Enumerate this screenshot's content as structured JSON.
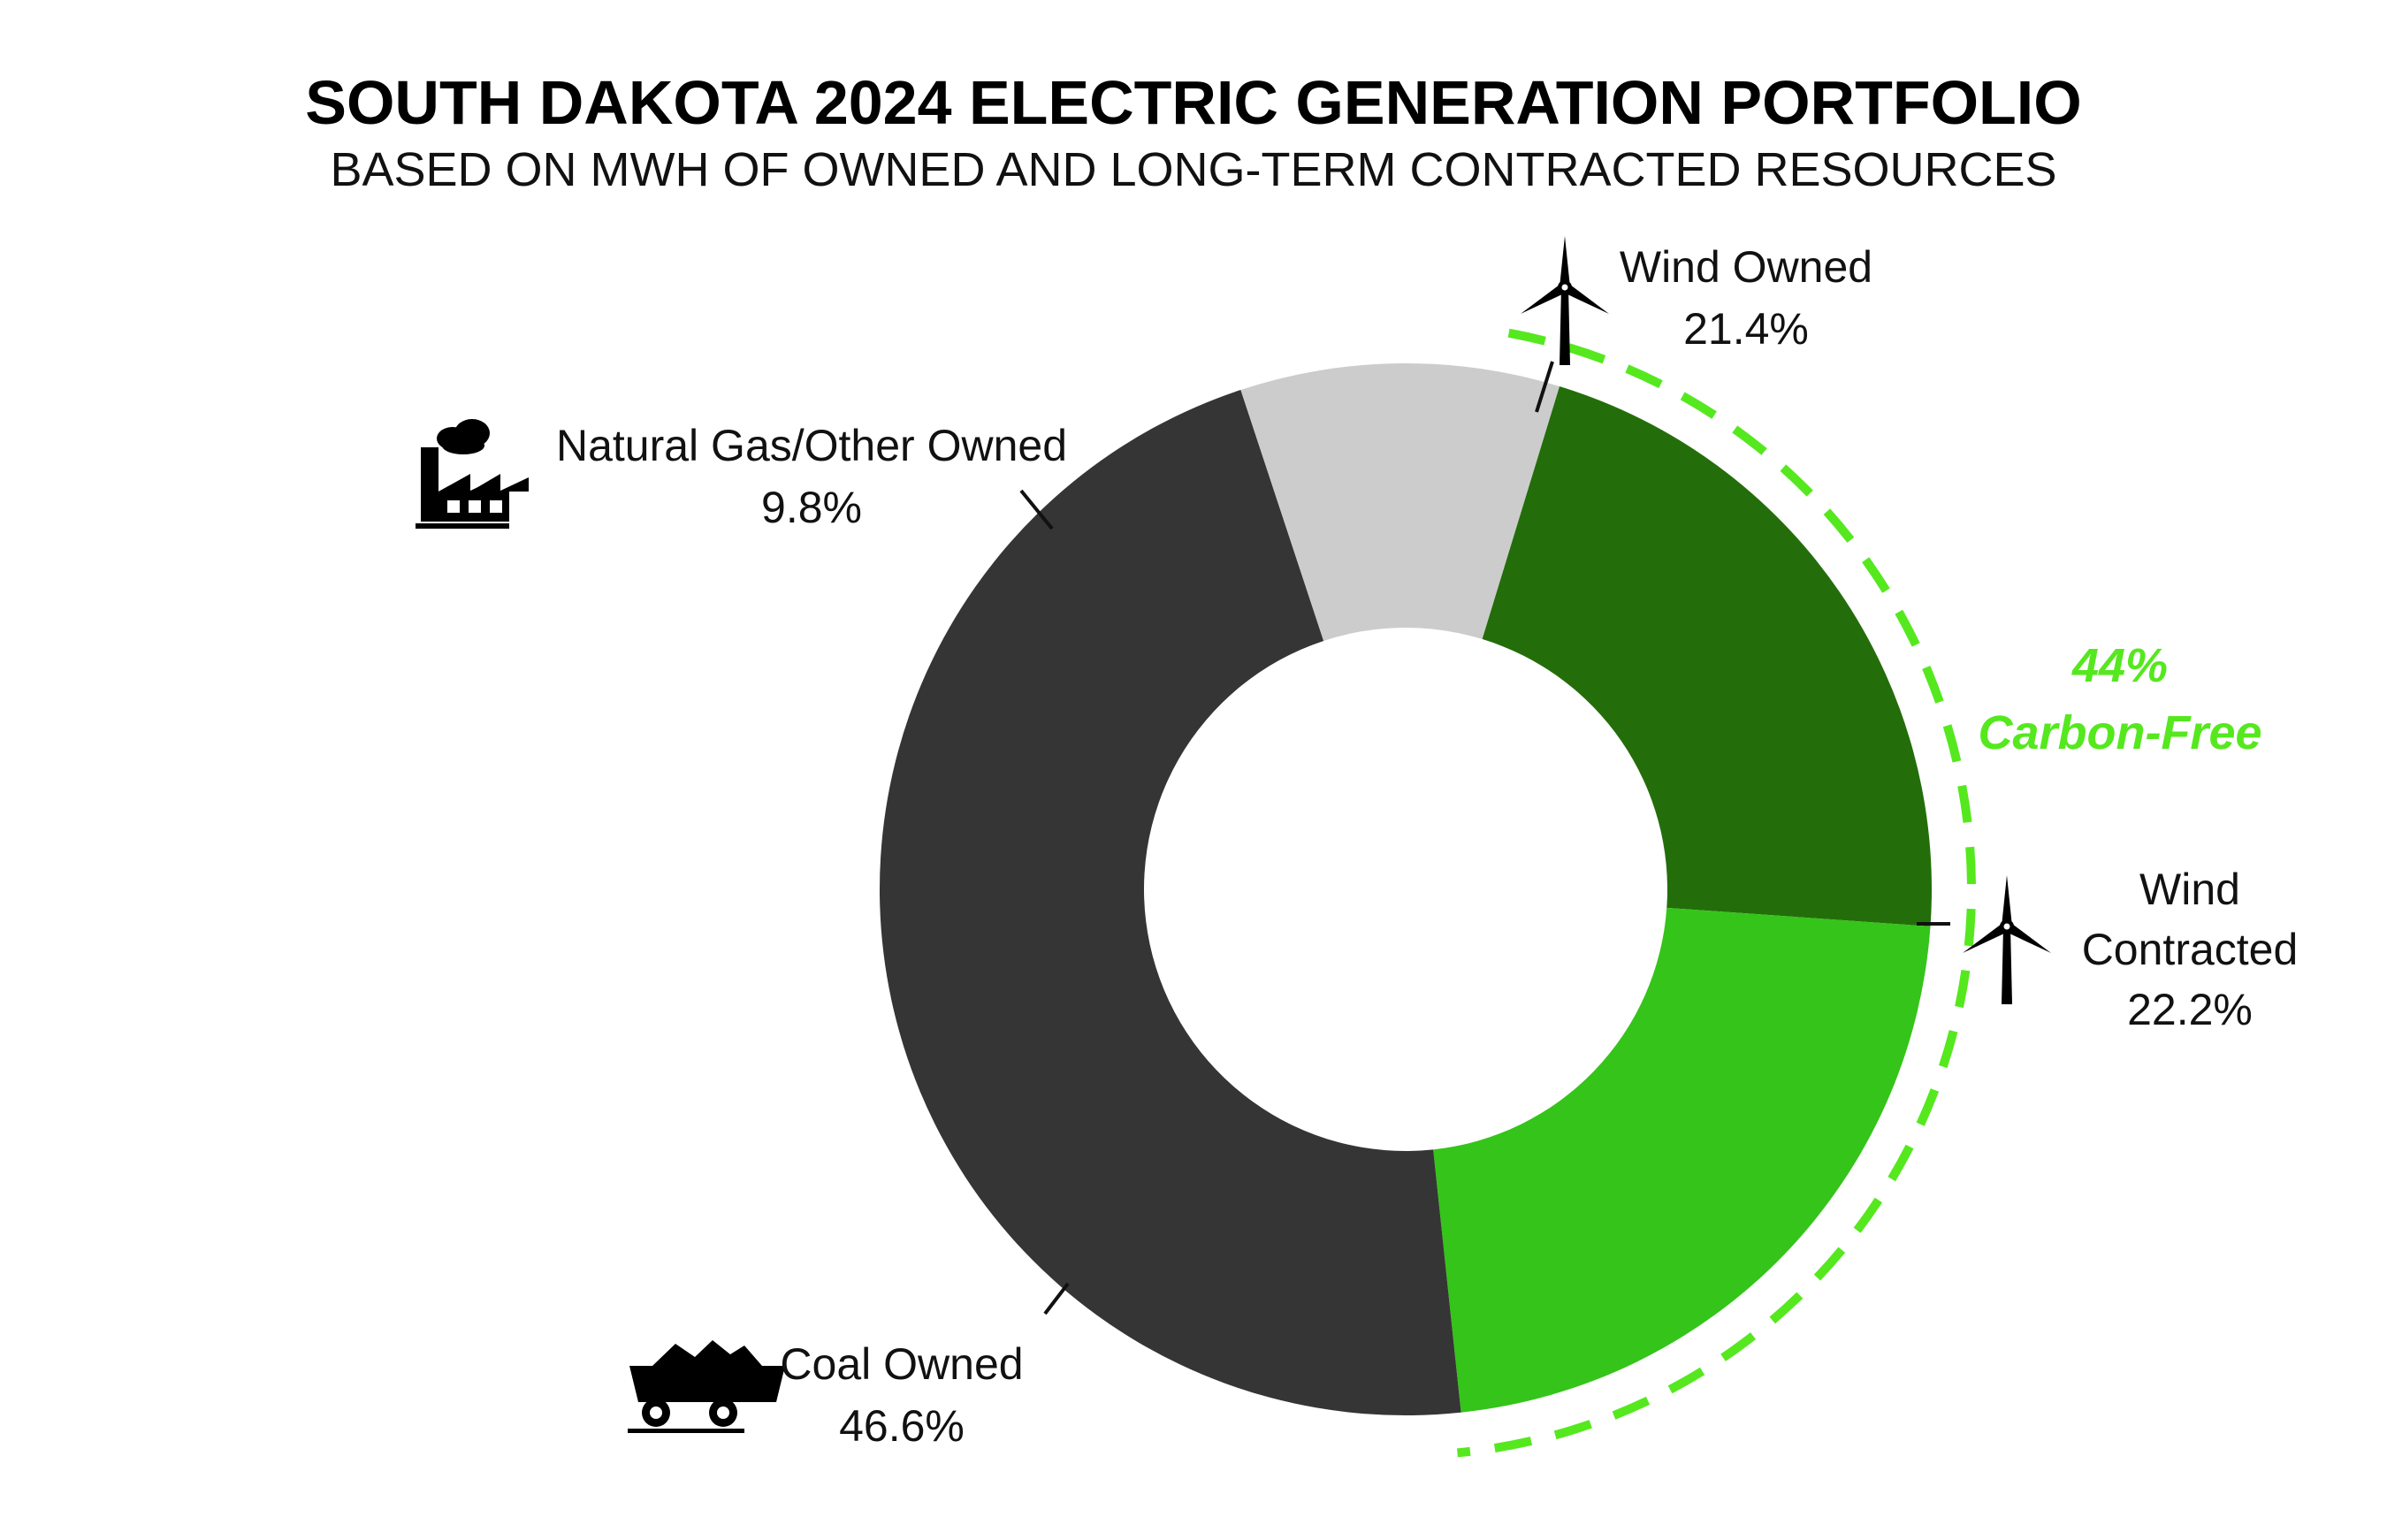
{
  "chart_data": {
    "type": "pie",
    "donut": true,
    "title": "SOUTH DAKOTA 2024 ELECTRIC GENERATION PORTFOLIO",
    "subtitle": "BASED ON MWH OF OWNED AND LONG-TERM CONTRACTED RESOURCES",
    "slices": [
      {
        "name": "Wind Owned",
        "value": 21.4,
        "label": "21.4%",
        "color": "#236e0a",
        "icon": "wind-turbine-icon"
      },
      {
        "name": "Wind Contracted",
        "name_lines": [
          "Wind",
          "Contracted"
        ],
        "value": 22.2,
        "label": "22.2%",
        "color": "#35c419",
        "icon": "wind-turbine-icon"
      },
      {
        "name": "Coal Owned",
        "value": 46.6,
        "label": "46.6%",
        "color": "#353535",
        "icon": "coal-cart-icon"
      },
      {
        "name": "Natural Gas/Other Owned",
        "value": 9.8,
        "label": "9.8%",
        "color": "#cccccc",
        "icon": "factory-icon"
      }
    ],
    "callout": {
      "lines": [
        "44%",
        "Carbon-Free"
      ],
      "color": "#55e81e",
      "covers": [
        "Wind Owned",
        "Wind Contracted"
      ]
    }
  }
}
